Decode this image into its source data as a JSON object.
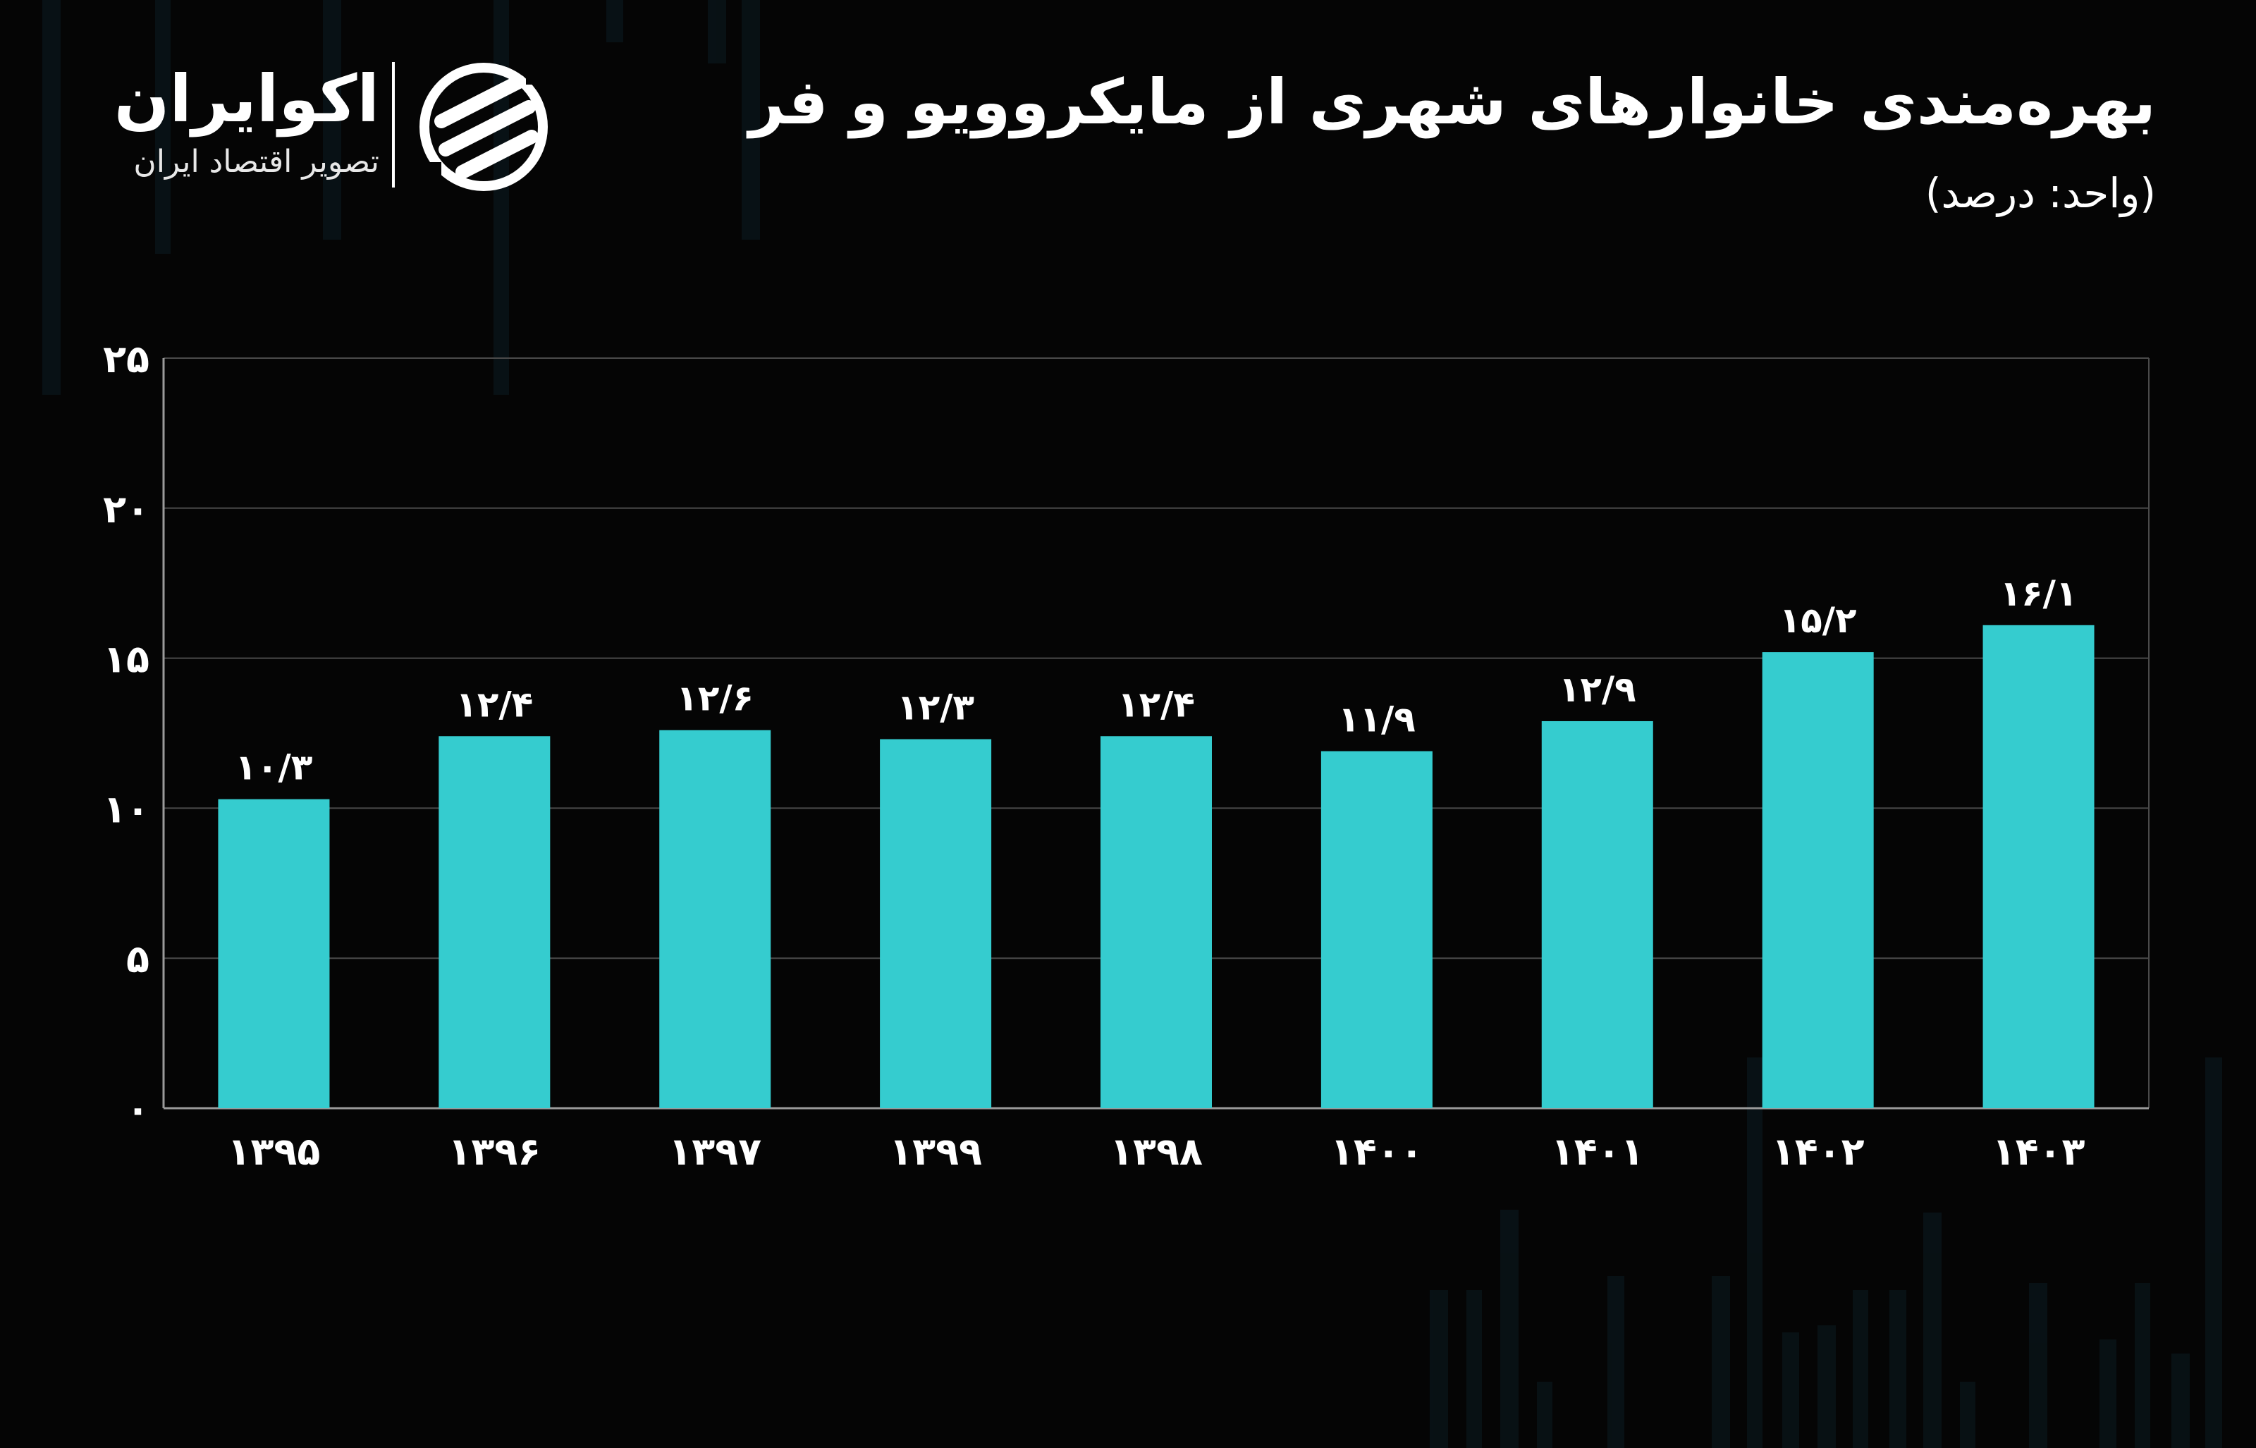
{
  "title": "بهره‌مندی خانوارهای شهری از مایکروویو و فر",
  "subtitle": "(واحد: درصد)",
  "brand": {
    "name": "اکوایران",
    "tagline": "تصویر اقتصاد ایران"
  },
  "colors": {
    "background": "#050505",
    "bar": "#35cccf",
    "gridline": "#4a4a4a",
    "axis": "#9a9a9a",
    "text": "#ffffff"
  },
  "chart_data": {
    "type": "bar",
    "title": "بهره‌مندی خانوارهای شهری از مایکروویو و فر",
    "subtitle": "(واحد: درصد)",
    "categories": [
      "۱۳۹۵",
      "۱۳۹۶",
      "۱۳۹۷",
      "۱۳۹۹",
      "۱۳۹۸",
      "۱۴۰۰",
      "۱۴۰۱",
      "۱۴۰۲",
      "۱۴۰۳"
    ],
    "values": [
      10.3,
      12.4,
      12.6,
      12.3,
      12.4,
      11.9,
      12.9,
      15.2,
      16.1
    ],
    "data_labels": [
      "۱۰/۳",
      "۱۲/۴",
      "۱۲/۶",
      "۱۲/۳",
      "۱۲/۴",
      "۱۱/۹",
      "۱۲/۹",
      "۱۵/۲",
      "۱۶/۱"
    ],
    "yticks": [
      0,
      5,
      10,
      15,
      20,
      25
    ],
    "ytick_labels": [
      "۰",
      "۵",
      "۱۰",
      "۱۵",
      "۲۰",
      "۲۵"
    ],
    "ylim": [
      0,
      25
    ],
    "grid": true,
    "legend": "none"
  }
}
